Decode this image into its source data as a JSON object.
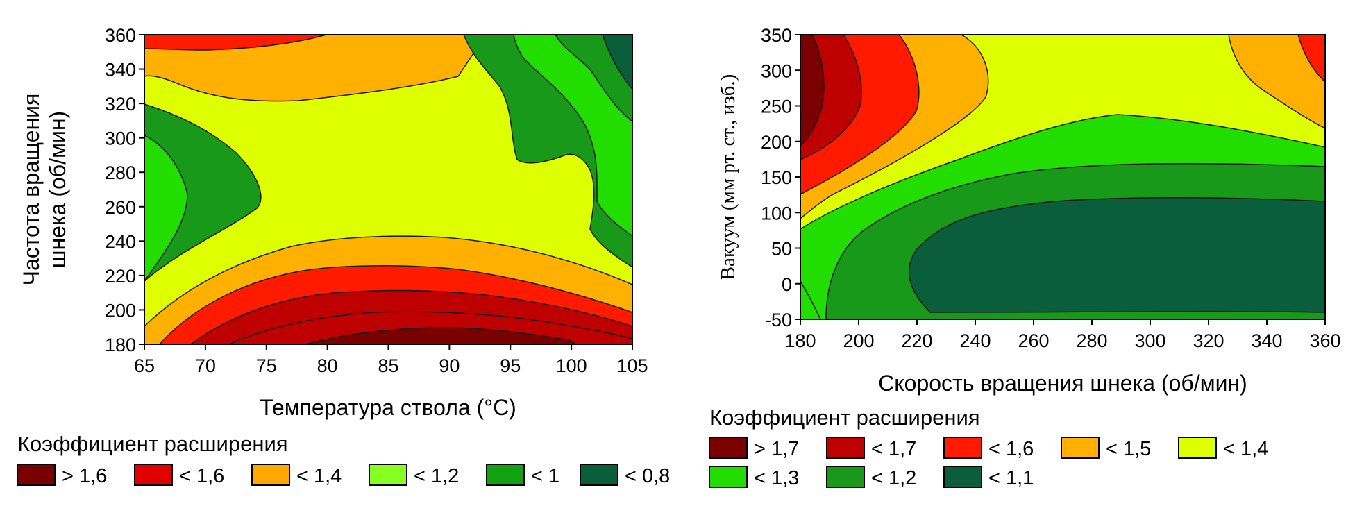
{
  "colors": {
    "c_gt17": "#7a0000",
    "c_lt17": "#bf0000",
    "c_lt16": "#ff1a00",
    "c_lt15": "#ffb000",
    "c_lt14": "#ddff00",
    "c_lt13": "#22dd00",
    "c_lt12": "#199919",
    "c_lt11": "#0a5e3c",
    "l_gt16": "#7a0000",
    "l_lt16": "#e00000",
    "l_lt14": "#ffa800",
    "l_lt12": "#88ff22",
    "l_lt1": "#11a111",
    "l_lt08": "#0a5e3c"
  },
  "chart_data": [
    {
      "type": "contour",
      "title": "",
      "xlabel": "Температура ствола (°C)",
      "ylabel_line1": "Частота вращения",
      "ylabel_line2": "шнека (об/мин)",
      "xlim": [
        65,
        105
      ],
      "ylim": [
        180,
        360
      ],
      "x_ticks": [
        "65",
        "70",
        "75",
        "80",
        "85",
        "90",
        "95",
        "100",
        "105"
      ],
      "y_ticks": [
        "180",
        "200",
        "220",
        "240",
        "260",
        "280",
        "300",
        "320",
        "340",
        "360"
      ],
      "legend_title": "Коэффициент расширения",
      "legend": [
        {
          "label": "> 1,6",
          "color": "#7a0000"
        },
        {
          "label": "< 1,6",
          "color": "#e00000"
        },
        {
          "label": "< 1,4",
          "color": "#ffa800"
        },
        {
          "label": "< 1,2",
          "color": "#88ff22"
        },
        {
          "label": "< 1",
          "color": "#11a111"
        },
        {
          "label": "< 0,8",
          "color": "#0a5e3c"
        }
      ],
      "regions": [
        {
          "level": "> 1,6",
          "description": "bottom center, around 86-93 °C, 180-190 об/мин"
        },
        {
          "level": "< 1,6",
          "description": "bottom band 73-105 °C below ~225 об/мин; top-left corner 65-75 °C above 355 об/мин"
        },
        {
          "level": "< 1,4",
          "description": "top band 65-85 °C at 320-360 об/мин; bottom band around 230 об/мин"
        },
        {
          "level": "< 1,2",
          "description": "central saddle region 70-95 °C, 240-340 об/мин"
        },
        {
          "level": "< 1",
          "description": "left edge 65-68 °C at 230-290 об/мин; right side 95-105 °C above 240 об/мин"
        },
        {
          "level": "< 0,8",
          "description": "top-right corner 100-105 °C above 330 об/мин"
        }
      ]
    },
    {
      "type": "contour",
      "title": "",
      "xlabel": "Скорость вращения шнека (об/мин)",
      "ylabel": "Вакуум (мм рт. ст., изб.)",
      "xlim": [
        180,
        360
      ],
      "ylim": [
        -50,
        350
      ],
      "x_ticks": [
        "180",
        "200",
        "220",
        "240",
        "260",
        "280",
        "300",
        "320",
        "340",
        "360"
      ],
      "y_ticks": [
        "-50",
        "0",
        "50",
        "100",
        "150",
        "200",
        "250",
        "300",
        "350"
      ],
      "legend_title": "Коэффициент расширения",
      "legend": [
        {
          "label": "> 1,7",
          "color": "#7a0000"
        },
        {
          "label": "< 1,7",
          "color": "#bf0000"
        },
        {
          "label": "< 1,6",
          "color": "#ff1a00"
        },
        {
          "label": "< 1,5",
          "color": "#ffb000"
        },
        {
          "label": "< 1,4",
          "color": "#ddff00"
        },
        {
          "label": "< 1,3",
          "color": "#22dd00"
        },
        {
          "label": "< 1,2",
          "color": "#199919"
        },
        {
          "label": "< 1,1",
          "color": "#0a5e3c"
        }
      ],
      "regions": [
        {
          "level": "> 1,7",
          "description": "left edge 180-188 об/мин, 160-350 мм"
        },
        {
          "level": "< 1,7",
          "description": "180-197 об/мин, 130-350 мм"
        },
        {
          "level": "< 1,6",
          "description": "180-215 об/мин, 100-350 мм; top-right corner 350-360 об/мин above 280 мм"
        },
        {
          "level": "< 1,5",
          "description": "200-240 об/мин upper area; top-right 320-360 об/мин above 200 мм"
        },
        {
          "level": "< 1,4",
          "description": "upper-middle band from 180 to 360 об/мин"
        },
        {
          "level": "< 1,3",
          "description": "band around 100-230 мм and left-bottom region"
        },
        {
          "level": "< 1,2",
          "description": "region 200-360 об/мин, -50 to 180 мм"
        },
        {
          "level": "< 1,1",
          "description": "core 235-360 об/мин, -40 to 120 мм"
        }
      ]
    }
  ]
}
